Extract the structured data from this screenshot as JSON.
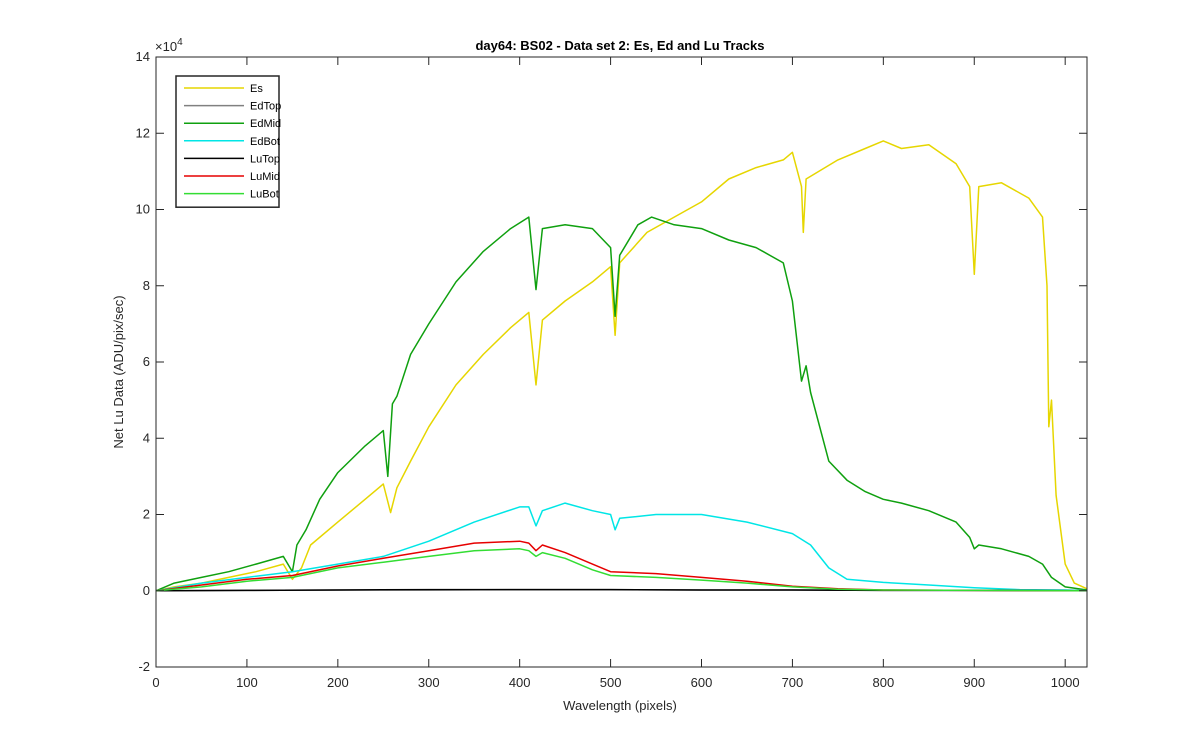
{
  "chart_data": {
    "type": "line",
    "title": "day64: BS02 - Data set 2: Es, Ed and Lu Tracks",
    "xlabel": "Wavelength (pixels)",
    "ylabel": "Net Lu Data (ADU/pix/sec)",
    "y_exponent_base": "×10",
    "y_exponent_power": "4",
    "xlim": [
      0,
      1024
    ],
    "ylim": [
      -2,
      14
    ],
    "xticks": [
      0,
      100,
      200,
      300,
      400,
      500,
      600,
      700,
      800,
      900,
      1000
    ],
    "yticks": [
      -2,
      0,
      2,
      4,
      6,
      8,
      10,
      12,
      14
    ],
    "xtick_labels": [
      "0",
      "100",
      "200",
      "300",
      "400",
      "500",
      "600",
      "700",
      "800",
      "900",
      "1000"
    ],
    "ytick_labels": [
      "-2",
      "0",
      "2",
      "4",
      "6",
      "8",
      "10",
      "12",
      "14"
    ],
    "grid": false,
    "legend_position": "top-left",
    "series": [
      {
        "name": "Es",
        "color": "#e6d600",
        "x": [
          0,
          20,
          50,
          80,
          110,
          140,
          150,
          160,
          170,
          200,
          230,
          250,
          258,
          265,
          280,
          300,
          330,
          360,
          390,
          410,
          418,
          425,
          450,
          480,
          500,
          505,
          510,
          540,
          570,
          600,
          630,
          660,
          690,
          700,
          710,
          712,
          715,
          750,
          780,
          800,
          820,
          850,
          880,
          895,
          900,
          905,
          930,
          960,
          975,
          980,
          982,
          985,
          990,
          1000,
          1010,
          1024
        ],
        "y": [
          0,
          0.1,
          0.2,
          0.35,
          0.5,
          0.7,
          0.3,
          0.6,
          1.2,
          1.8,
          2.4,
          2.8,
          2.05,
          2.7,
          3.4,
          4.3,
          5.4,
          6.2,
          6.9,
          7.3,
          5.4,
          7.1,
          7.6,
          8.1,
          8.5,
          6.7,
          8.6,
          9.4,
          9.8,
          10.2,
          10.8,
          11.1,
          11.3,
          11.5,
          10.6,
          9.4,
          10.8,
          11.3,
          11.6,
          11.8,
          11.6,
          11.7,
          11.2,
          10.6,
          8.3,
          10.6,
          10.7,
          10.3,
          9.8,
          8.0,
          4.3,
          5.0,
          2.5,
          0.7,
          0.2,
          0.05
        ]
      },
      {
        "name": "EdTop",
        "color": "#808080",
        "x": [
          0,
          100,
          200,
          300,
          400,
          500,
          600,
          700,
          800,
          900,
          1024
        ],
        "y": [
          0,
          0.01,
          0.02,
          0.02,
          0.03,
          0.03,
          0.02,
          0.02,
          0.01,
          0.01,
          0
        ]
      },
      {
        "name": "EdMid",
        "color": "#0fa00f",
        "x": [
          0,
          20,
          50,
          80,
          110,
          140,
          150,
          155,
          165,
          180,
          200,
          230,
          250,
          255,
          260,
          265,
          280,
          300,
          330,
          360,
          390,
          410,
          418,
          425,
          450,
          480,
          500,
          505,
          510,
          530,
          545,
          570,
          600,
          630,
          660,
          690,
          700,
          710,
          715,
          720,
          740,
          760,
          780,
          800,
          820,
          850,
          880,
          895,
          900,
          905,
          930,
          960,
          975,
          985,
          1000,
          1024
        ],
        "y": [
          0,
          0.2,
          0.35,
          0.5,
          0.7,
          0.9,
          0.5,
          1.2,
          1.6,
          2.4,
          3.1,
          3.8,
          4.2,
          3.0,
          4.9,
          5.1,
          6.2,
          7.0,
          8.1,
          8.9,
          9.5,
          9.8,
          7.9,
          9.5,
          9.6,
          9.5,
          9.0,
          7.2,
          8.8,
          9.6,
          9.8,
          9.6,
          9.5,
          9.2,
          9.0,
          8.6,
          7.6,
          5.5,
          5.9,
          5.2,
          3.4,
          2.9,
          2.6,
          2.4,
          2.3,
          2.1,
          1.8,
          1.4,
          1.1,
          1.2,
          1.1,
          0.9,
          0.7,
          0.35,
          0.1,
          0.02
        ]
      },
      {
        "name": "EdBot",
        "color": "#00e6e6",
        "x": [
          0,
          50,
          100,
          150,
          200,
          250,
          300,
          350,
          400,
          410,
          418,
          425,
          450,
          480,
          500,
          505,
          510,
          550,
          600,
          650,
          700,
          720,
          740,
          760,
          800,
          850,
          900,
          950,
          1000,
          1024
        ],
        "y": [
          0,
          0.2,
          0.35,
          0.5,
          0.7,
          0.9,
          1.3,
          1.8,
          2.2,
          2.2,
          1.7,
          2.1,
          2.3,
          2.1,
          2.0,
          1.6,
          1.9,
          2.0,
          2.0,
          1.8,
          1.5,
          1.2,
          0.6,
          0.3,
          0.22,
          0.15,
          0.08,
          0.03,
          0.02,
          0
        ]
      },
      {
        "name": "LuTop",
        "color": "#000000",
        "x": [
          0,
          100,
          200,
          300,
          400,
          500,
          600,
          700,
          800,
          900,
          1024
        ],
        "y": [
          0,
          0.01,
          0.02,
          0.03,
          0.03,
          0.03,
          0.02,
          0.02,
          0.01,
          0.01,
          0
        ]
      },
      {
        "name": "LuMid",
        "color": "#e60000",
        "x": [
          0,
          50,
          100,
          150,
          200,
          250,
          300,
          350,
          400,
          410,
          418,
          425,
          450,
          480,
          500,
          550,
          600,
          650,
          700,
          750,
          800,
          900,
          1024
        ],
        "y": [
          0,
          0.15,
          0.3,
          0.4,
          0.65,
          0.85,
          1.05,
          1.25,
          1.3,
          1.25,
          1.05,
          1.2,
          1.0,
          0.7,
          0.5,
          0.45,
          0.35,
          0.25,
          0.12,
          0.05,
          0.02,
          0.01,
          0
        ]
      },
      {
        "name": "LuBot",
        "color": "#33dd33",
        "x": [
          0,
          50,
          100,
          150,
          200,
          250,
          300,
          350,
          400,
          410,
          418,
          425,
          450,
          480,
          500,
          550,
          600,
          650,
          700,
          750,
          800,
          900,
          1024
        ],
        "y": [
          0,
          0.1,
          0.25,
          0.35,
          0.6,
          0.75,
          0.9,
          1.05,
          1.1,
          1.05,
          0.9,
          1.0,
          0.85,
          0.55,
          0.4,
          0.35,
          0.28,
          0.2,
          0.1,
          0.04,
          0.02,
          0.01,
          0
        ]
      }
    ]
  }
}
